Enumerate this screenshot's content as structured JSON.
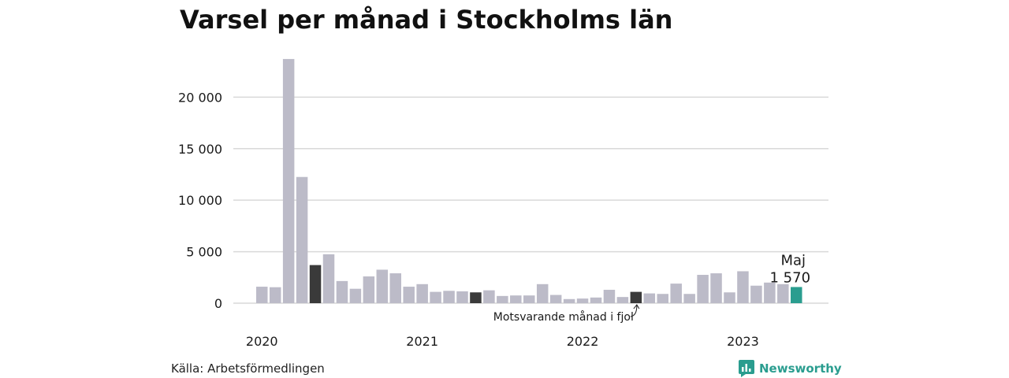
{
  "title": "Varsel per månad i Stockholms län",
  "source": "Källa: Arbetsförmedlingen",
  "brand": "Newsworthy",
  "annotation": "Motsvarande månad i fjol",
  "highlight": {
    "month": "Maj",
    "value_label": "1 570"
  },
  "colors": {
    "bar": "#bcbbc8",
    "comparison": "#3a3a3a",
    "highlight": "#2a9d8f",
    "grid": "#d9d9d9",
    "text": "#1a1a1a"
  },
  "chart_data": {
    "type": "bar",
    "title": "Varsel per månad i Stockholms län",
    "xlabel": "",
    "ylabel": "",
    "ylim": [
      0,
      24000
    ],
    "yticks": [
      0,
      5000,
      10000,
      15000,
      20000
    ],
    "ytick_labels": [
      "0",
      "5 000",
      "10 000",
      "15 000",
      "20 000"
    ],
    "x_labels": [
      {
        "label": "2020",
        "index": 0
      },
      {
        "label": "2021",
        "index": 12
      },
      {
        "label": "2022",
        "index": 24
      },
      {
        "label": "2023",
        "index": 36
      }
    ],
    "categories": [
      "2020-01",
      "2020-02",
      "2020-03",
      "2020-04",
      "2020-05",
      "2020-06",
      "2020-07",
      "2020-08",
      "2020-09",
      "2020-10",
      "2020-11",
      "2020-12",
      "2021-01",
      "2021-02",
      "2021-03",
      "2021-04",
      "2021-05",
      "2021-06",
      "2021-07",
      "2021-08",
      "2021-09",
      "2021-10",
      "2021-11",
      "2021-12",
      "2022-01",
      "2022-02",
      "2022-03",
      "2022-04",
      "2022-05",
      "2022-06",
      "2022-07",
      "2022-08",
      "2022-09",
      "2022-10",
      "2022-11",
      "2022-12",
      "2023-01",
      "2023-02",
      "2023-03",
      "2023-04",
      "2023-05"
    ],
    "values": [
      1600,
      1550,
      23700,
      12250,
      3700,
      4750,
      2150,
      1400,
      2600,
      3250,
      2900,
      1600,
      1850,
      1100,
      1200,
      1150,
      1050,
      1250,
      700,
      750,
      750,
      1850,
      800,
      400,
      450,
      550,
      1300,
      600,
      1100,
      950,
      900,
      1900,
      900,
      2750,
      2900,
      1050,
      3100,
      1700,
      2000,
      1850,
      1570
    ],
    "comparison_indices": [
      4,
      16,
      28
    ],
    "highlight_index": 40,
    "grid": true,
    "legend": "none"
  }
}
